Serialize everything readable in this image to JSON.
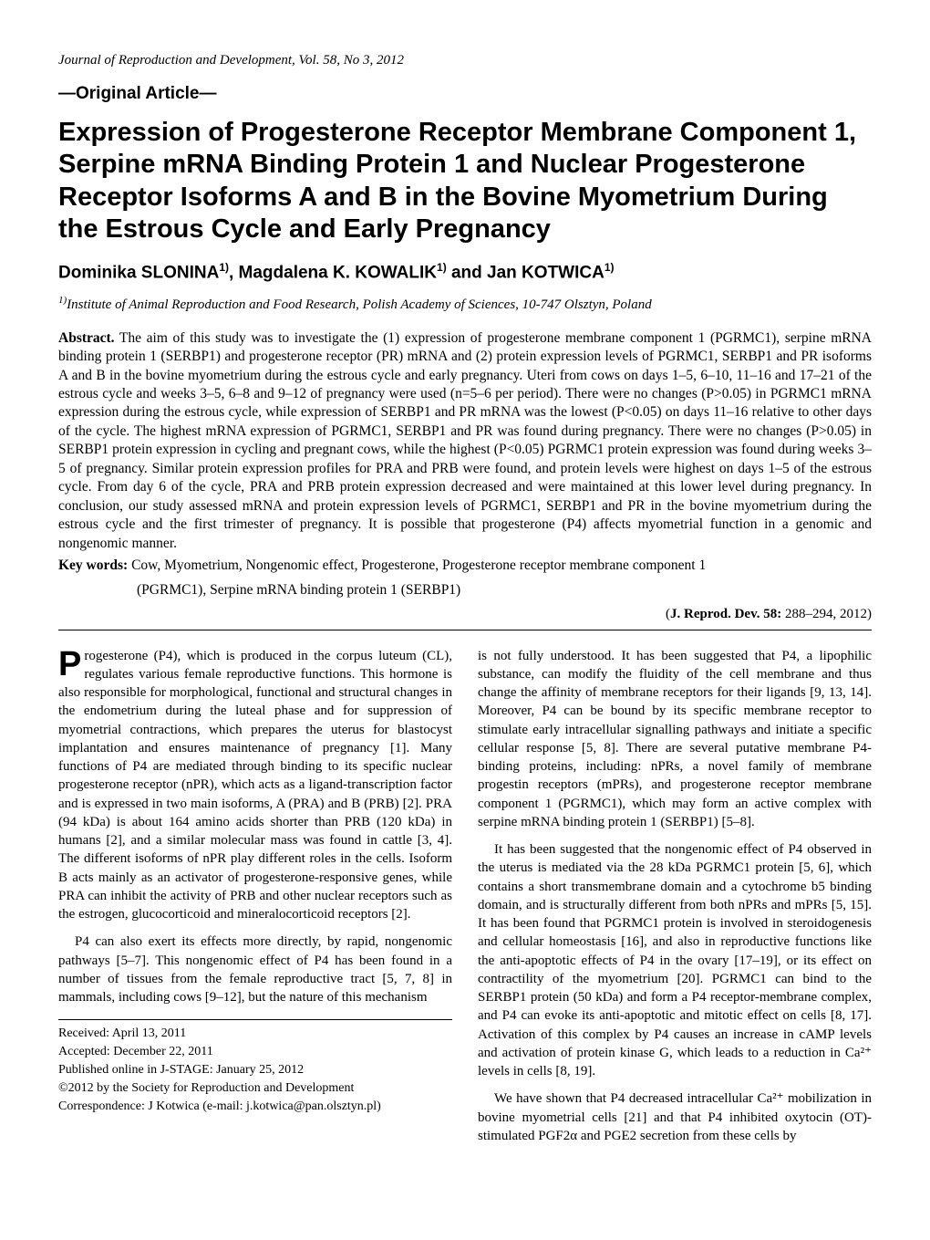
{
  "journal_line": "Journal of Reproduction and Development, Vol. 58, No 3, 2012",
  "article_type": "—Original Article—",
  "title": "Expression of Progesterone Receptor Membrane Component 1, Serpine mRNA Binding Protein 1 and Nuclear Progesterone Receptor Isoforms A and B in the Bovine Myometrium During the Estrous Cycle and Early Pregnancy",
  "authors_html": "Dominika SLONINA<sup>1)</sup>, Magdalena K. KOWALIK<sup>1)</sup> and Jan KOTWICA<sup>1)</sup>",
  "affiliation_html": "<sup>1)</sup>Institute of Animal Reproduction and Food Research, Polish Academy of Sciences, 10-747 Olsztyn, Poland",
  "abstract_label": "Abstract.",
  "abstract_text": " The aim of this study was to investigate the (1) expression of progesterone membrane component 1 (PGRMC1), serpine mRNA binding protein 1 (SERBP1) and progesterone receptor (PR) mRNA and (2) protein expression levels of PGRMC1, SERBP1 and PR isoforms A and B in the bovine myometrium during the estrous cycle and early pregnancy. Uteri from cows on days 1–5, 6–10, 11–16 and 17–21 of the estrous cycle and weeks 3–5, 6–8 and 9–12 of pregnancy were used (n=5–6 per period). There were no changes (P>0.05) in PGRMC1 mRNA expression during the estrous cycle, while expression of SERBP1 and PR mRNA was the lowest (P<0.05) on days 11–16 relative to other days of the cycle. The highest mRNA expression of PGRMC1, SERBP1 and PR was found during pregnancy. There were no changes (P>0.05) in SERBP1 protein expression in cycling and pregnant cows, while the highest (P<0.05) PGRMC1 protein expression was found during weeks 3–5 of pregnancy. Similar protein expression profiles for PRA and PRB were found, and protein levels were highest on days 1–5 of the estrous cycle. From day 6 of the cycle, PRA and PRB protein expression decreased and were maintained at this lower level during pregnancy. In conclusion, our study assessed mRNA and protein expression levels of PGRMC1, SERBP1 and PR in the bovine myometrium during the estrous cycle and the first trimester of pregnancy. It is possible that progesterone (P4) affects myometrial function in a genomic and nongenomic manner.",
  "keywords_label": "Key words:",
  "keywords_text": " Cow, Myometrium, Nongenomic effect, Progesterone, Progesterone receptor membrane component 1",
  "keywords_cont": "(PGRMC1), Serpine mRNA binding protein 1 (SERBP1)",
  "citation": {
    "journal": "J. Reprod. Dev. 58: ",
    "pages": "288–294",
    "year": ", 2012"
  },
  "body": {
    "p1": "Progesterone (P4), which is produced in the corpus luteum (CL), regulates various female reproductive functions. This hormone is also responsible for morphological, functional and structural changes in the endometrium during the luteal phase and for suppression of myometrial contractions, which prepares the uterus for blastocyst implantation and ensures maintenance of pregnancy [1]. Many functions of P4 are mediated through binding to its specific nuclear progesterone receptor (nPR), which acts as a ligand-transcription factor and is expressed in two main isoforms, A (PRA) and B (PRB) [2]. PRA (94 kDa) is about 164 amino acids shorter than PRB (120 kDa) in humans [2], and a similar molecular mass was found in cattle [3, 4]. The different isoforms of nPR play different roles in the cells. Isoform B acts mainly as an activator of progesterone-responsive genes, while PRA can inhibit the activity of PRB and other nuclear receptors such as the estrogen, glucocorticoid and mineralocorticoid receptors [2].",
    "p2": "P4 can also exert its effects more directly, by rapid, nongenomic pathways [5–7]. This nongenomic effect of P4 has been found in a number of tissues from the female reproductive tract [5, 7, 8] in mammals, including cows [9–12], but the nature of this mechanism",
    "p3": "is not fully understood. It has been suggested that P4, a lipophilic substance, can modify the fluidity of the cell membrane and thus change the affinity of membrane receptors for their ligands [9, 13, 14]. Moreover, P4 can be bound by its specific membrane receptor to stimulate early intracellular signalling pathways and initiate a specific cellular response [5, 8]. There are several putative membrane P4-binding proteins, including: nPRs, a novel family of membrane progestin receptors (mPRs), and progesterone receptor membrane component 1 (PGRMC1), which may form an active complex with serpine mRNA binding protein 1 (SERBP1) [5–8].",
    "p4": "It has been suggested that the nongenomic effect of P4 observed in the uterus is mediated via the 28 kDa PGRMC1 protein [5, 6], which contains a short transmembrane domain and a cytochrome b5 binding domain, and is structurally different from both nPRs and mPRs [5, 15]. It has been found that PGRMC1 protein is involved in steroidogenesis and cellular homeostasis [16], and also in reproductive functions like the anti-apoptotic effects of P4 in the ovary [17–19], or its effect on contractility of the myometrium [20]. PGRMC1 can bind to the SERBP1 protein (50 kDa) and form a P4 receptor-membrane complex, and P4 can evoke its anti-apoptotic and mitotic effect on cells [8, 17]. Activation of this complex by P4 causes an increase in cAMP levels and activation of protein kinase G, which leads to a reduction in Ca²⁺ levels in cells [8, 19].",
    "p5": "We have shown that P4 decreased intracellular Ca²⁺ mobilization in bovine myometrial cells [21] and that P4 inhibited oxytocin (OT)-stimulated PGF2α and PGE2 secretion from these cells by"
  },
  "footer": {
    "received": "Received: April 13, 2011",
    "accepted": "Accepted: December 22, 2011",
    "online": "Published online in J-STAGE: January 25, 2012",
    "copyright": "©2012 by the Society for Reproduction and Development",
    "correspondence": "Correspondence: J Kotwica (e-mail: j.kotwica@pan.olsztyn.pl)"
  }
}
